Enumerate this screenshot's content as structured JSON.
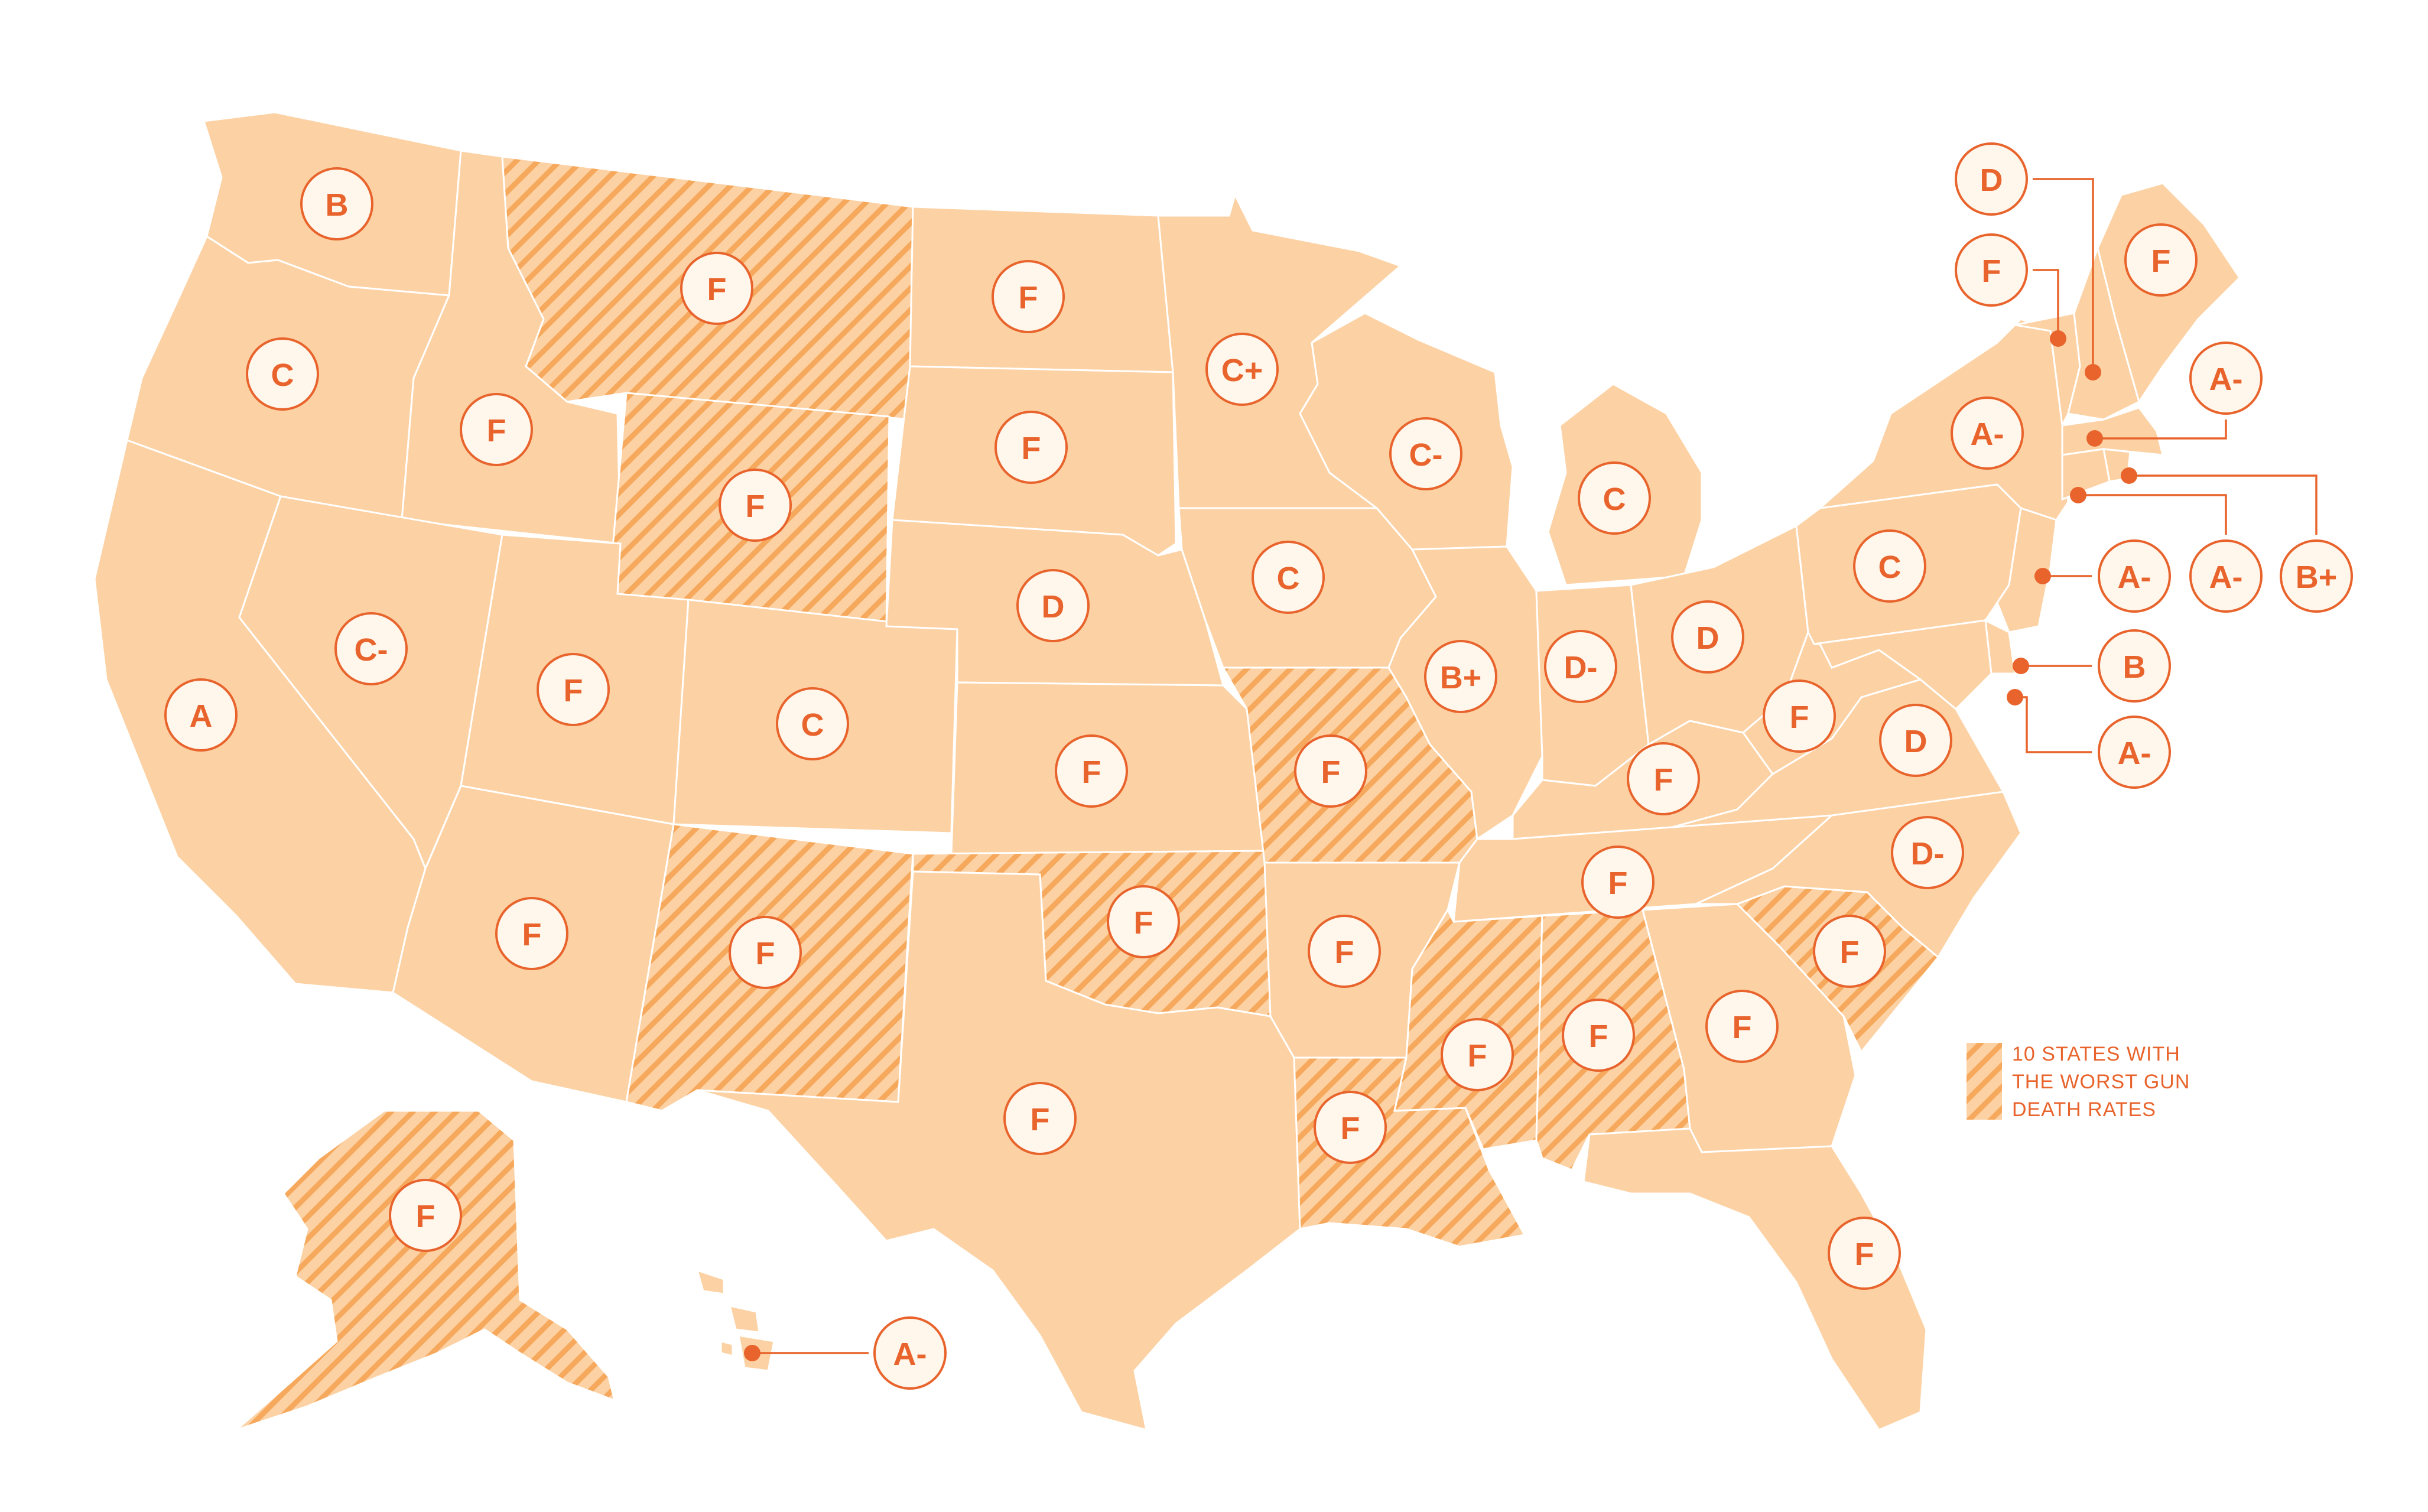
{
  "colors": {
    "state_fill": "#fcd2a5",
    "hatch_fill": "#f9b46f",
    "accent": "#e8642c",
    "badge_fill": "#fff6ec"
  },
  "legend": {
    "lines": [
      "10 STATES WITH",
      "THE WORST GUN",
      "DEATH RATES"
    ],
    "pattern": "diagonal-hatch"
  },
  "states": [
    {
      "id": "WA",
      "grade": "B",
      "worst": false
    },
    {
      "id": "OR",
      "grade": "C",
      "worst": false
    },
    {
      "id": "CA",
      "grade": "A",
      "worst": false
    },
    {
      "id": "ID",
      "grade": "F",
      "worst": false
    },
    {
      "id": "NV",
      "grade": "C-",
      "worst": false
    },
    {
      "id": "MT",
      "grade": "F",
      "worst": true
    },
    {
      "id": "WY",
      "grade": "F",
      "worst": true
    },
    {
      "id": "UT",
      "grade": "F",
      "worst": false
    },
    {
      "id": "AZ",
      "grade": "F",
      "worst": false
    },
    {
      "id": "CO",
      "grade": "C",
      "worst": false
    },
    {
      "id": "NM",
      "grade": "F",
      "worst": true
    },
    {
      "id": "ND",
      "grade": "F",
      "worst": false
    },
    {
      "id": "SD",
      "grade": "F",
      "worst": false
    },
    {
      "id": "NE",
      "grade": "D",
      "worst": false
    },
    {
      "id": "KS",
      "grade": "F",
      "worst": false
    },
    {
      "id": "OK",
      "grade": "F",
      "worst": true
    },
    {
      "id": "TX",
      "grade": "F",
      "worst": false
    },
    {
      "id": "MN",
      "grade": "C+",
      "worst": false
    },
    {
      "id": "IA",
      "grade": "C",
      "worst": false
    },
    {
      "id": "MO",
      "grade": "F",
      "worst": true
    },
    {
      "id": "AR",
      "grade": "F",
      "worst": false
    },
    {
      "id": "LA",
      "grade": "F",
      "worst": true
    },
    {
      "id": "WI",
      "grade": "C-",
      "worst": false
    },
    {
      "id": "IL",
      "grade": "B+",
      "worst": false
    },
    {
      "id": "MI",
      "grade": "C",
      "worst": false
    },
    {
      "id": "IN",
      "grade": "D-",
      "worst": false
    },
    {
      "id": "OH",
      "grade": "D",
      "worst": false
    },
    {
      "id": "KY",
      "grade": "F",
      "worst": false
    },
    {
      "id": "TN",
      "grade": "F",
      "worst": false
    },
    {
      "id": "MS",
      "grade": "F",
      "worst": true
    },
    {
      "id": "AL",
      "grade": "F",
      "worst": true
    },
    {
      "id": "GA",
      "grade": "F",
      "worst": false
    },
    {
      "id": "FL",
      "grade": "F",
      "worst": false
    },
    {
      "id": "SC",
      "grade": "F",
      "worst": true
    },
    {
      "id": "NC",
      "grade": "D-",
      "worst": false
    },
    {
      "id": "VA",
      "grade": "D",
      "worst": false
    },
    {
      "id": "WV",
      "grade": "F",
      "worst": false
    },
    {
      "id": "PA",
      "grade": "C",
      "worst": false
    },
    {
      "id": "NY",
      "grade": "A-",
      "worst": false
    },
    {
      "id": "VT",
      "grade": "F",
      "worst": false
    },
    {
      "id": "NH",
      "grade": "D",
      "worst": false
    },
    {
      "id": "ME",
      "grade": "F",
      "worst": false
    },
    {
      "id": "MA",
      "grade": "A-",
      "worst": false
    },
    {
      "id": "RI",
      "grade": "B+",
      "worst": false
    },
    {
      "id": "CT",
      "grade": "A-",
      "worst": false
    },
    {
      "id": "NJ",
      "grade": "A-",
      "worst": false
    },
    {
      "id": "DE",
      "grade": "B",
      "worst": false
    },
    {
      "id": "MD",
      "grade": "A-",
      "worst": false
    },
    {
      "id": "AK",
      "grade": "F",
      "worst": true
    },
    {
      "id": "HI",
      "grade": "A-",
      "worst": false
    }
  ]
}
